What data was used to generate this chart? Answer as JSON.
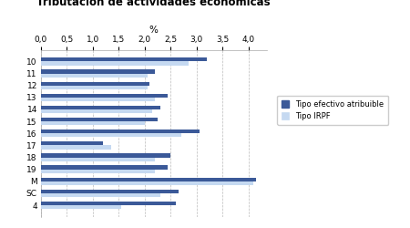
{
  "title": "Tributación de actividades económicas",
  "xlabel": "%",
  "categories": [
    "10",
    "11",
    "12",
    "13",
    "14",
    "15",
    "16",
    "17",
    "18",
    "19",
    "M",
    "SC",
    "4"
  ],
  "tipo_efectivo": [
    3.2,
    2.2,
    2.1,
    2.45,
    2.3,
    2.25,
    3.05,
    1.2,
    2.5,
    2.45,
    4.15,
    2.65,
    2.6
  ],
  "tipo_irpf": [
    2.85,
    2.05,
    2.05,
    2.2,
    2.15,
    2.0,
    2.7,
    1.35,
    2.2,
    2.2,
    4.1,
    2.3,
    1.55
  ],
  "xlim": [
    0,
    4.35
  ],
  "xticks": [
    0.0,
    0.5,
    1.0,
    1.5,
    2.0,
    2.5,
    3.0,
    3.5,
    4.0
  ],
  "xtick_labels": [
    "0,0",
    "0,5",
    "1,0",
    "1,5",
    "2,0",
    "2,5",
    "3,0",
    "3,5",
    "4,0"
  ],
  "color_efectivo": "#3B5998",
  "color_irpf": "#C5D9F1",
  "legend_efectivo": "Tipo efectivo atribuible",
  "legend_irpf": "Tipo IRPF",
  "bar_height": 0.32,
  "figsize": [
    4.5,
    2.5
  ],
  "dpi": 100
}
